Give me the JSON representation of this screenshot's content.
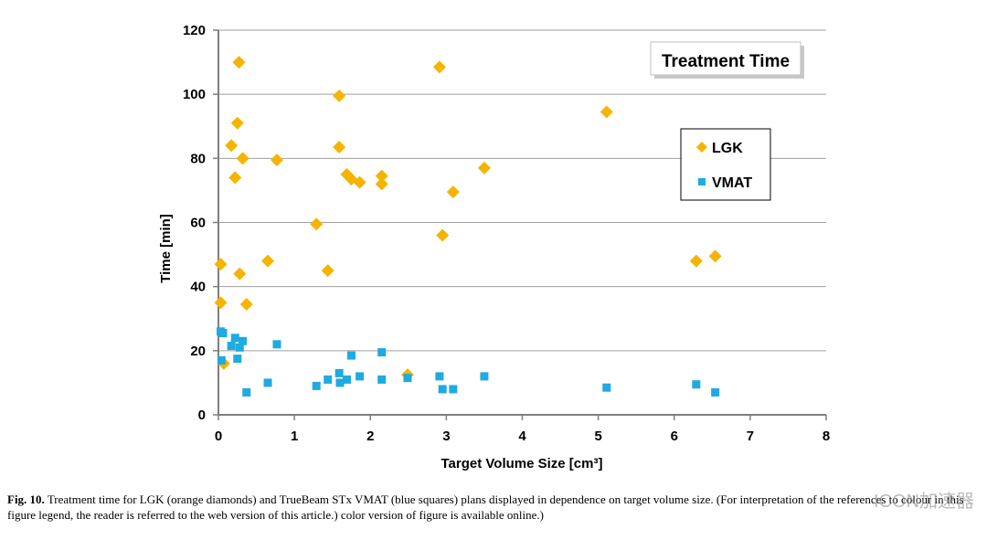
{
  "chart_data": {
    "type": "scatter",
    "title": "Treatment Time",
    "xlabel": "Target Volume Size [cm³]",
    "ylabel": "Time [min]",
    "xlim": [
      0,
      8
    ],
    "ylim": [
      0,
      120
    ],
    "xticks": [
      "0",
      "1",
      "2",
      "3",
      "4",
      "5",
      "6",
      "7",
      "8"
    ],
    "yticks": [
      "0",
      "20",
      "40",
      "60",
      "80",
      "100",
      "120"
    ],
    "grid": "horizontal",
    "legend_position": "right",
    "series": [
      {
        "name": "LGK",
        "marker": "diamond",
        "color": "#F5B400",
        "points": [
          [
            0.03,
            47
          ],
          [
            0.03,
            35
          ],
          [
            0.07,
            16
          ],
          [
            0.17,
            84
          ],
          [
            0.22,
            74
          ],
          [
            0.25,
            91
          ],
          [
            0.27,
            110
          ],
          [
            0.28,
            44
          ],
          [
            0.32,
            80
          ],
          [
            0.37,
            34.5
          ],
          [
            0.65,
            48
          ],
          [
            0.77,
            79.5
          ],
          [
            1.29,
            59.5
          ],
          [
            1.44,
            45
          ],
          [
            1.59,
            99.5
          ],
          [
            1.59,
            83.5
          ],
          [
            1.69,
            75
          ],
          [
            1.75,
            73.5
          ],
          [
            1.86,
            72.5
          ],
          [
            2.15,
            74.5
          ],
          [
            2.15,
            72
          ],
          [
            2.49,
            12.5
          ],
          [
            2.91,
            108.5
          ],
          [
            2.95,
            56
          ],
          [
            3.09,
            69.5
          ],
          [
            3.5,
            77
          ],
          [
            5.11,
            94.5
          ],
          [
            6.29,
            48
          ],
          [
            6.54,
            49.5
          ]
        ]
      },
      {
        "name": "VMAT",
        "marker": "square",
        "color": "#1FAAE1",
        "points": [
          [
            0.03,
            26
          ],
          [
            0.06,
            25.5
          ],
          [
            0.04,
            17
          ],
          [
            0.17,
            21.5
          ],
          [
            0.22,
            24
          ],
          [
            0.25,
            17.5
          ],
          [
            0.28,
            21
          ],
          [
            0.32,
            23
          ],
          [
            0.37,
            7
          ],
          [
            0.65,
            10
          ],
          [
            0.77,
            22
          ],
          [
            1.29,
            9
          ],
          [
            1.44,
            11
          ],
          [
            1.59,
            13
          ],
          [
            1.6,
            10
          ],
          [
            1.69,
            11
          ],
          [
            1.75,
            18.5
          ],
          [
            1.86,
            12
          ],
          [
            2.15,
            19.5
          ],
          [
            2.15,
            11
          ],
          [
            2.49,
            11.5
          ],
          [
            2.91,
            12
          ],
          [
            2.95,
            8
          ],
          [
            3.09,
            8
          ],
          [
            3.5,
            12
          ],
          [
            5.11,
            8.5
          ],
          [
            6.29,
            9.5
          ],
          [
            6.54,
            7
          ]
        ]
      }
    ]
  },
  "caption": {
    "label": "Fig. 10.",
    "text": "Treatment time for LGK (orange diamonds) and TrueBeam STx VMAT (blue squares) plans displayed in dependence on target volume size. (For interpretation of the references to colour in this figure legend, the reader is referred to the web version of this article.) color version of figure is available online.)"
  },
  "watermark": "ICON加速器"
}
